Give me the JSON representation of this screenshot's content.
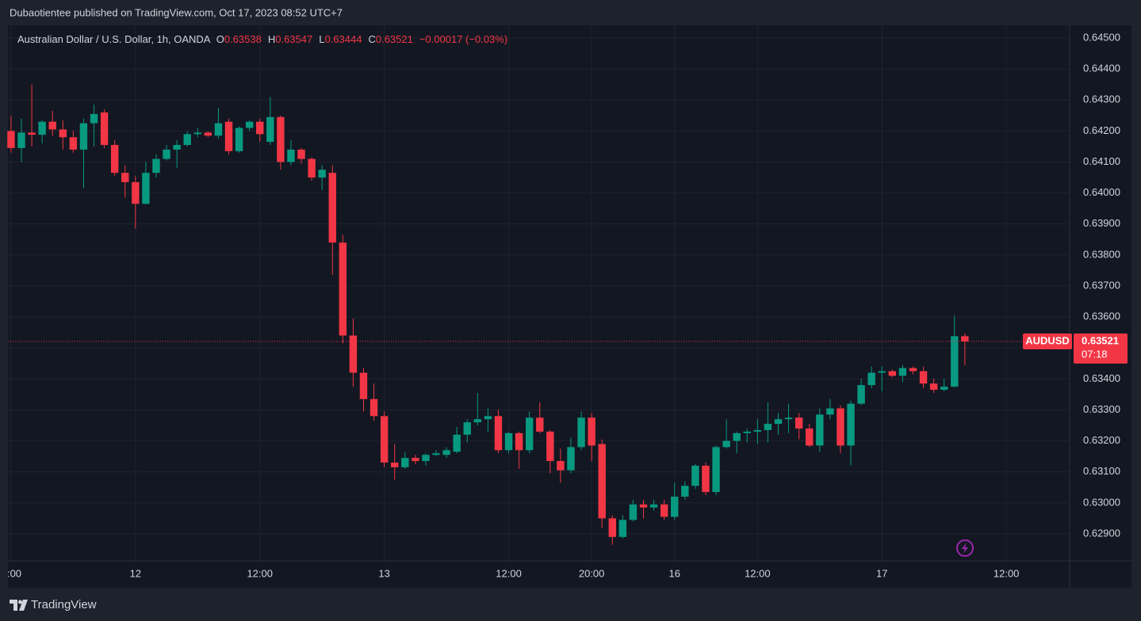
{
  "page": {
    "published": "Dubaotientee published on TradingView.com, Oct 17, 2023 08:52 UTC+7",
    "brand": "TradingView"
  },
  "chart_data": {
    "type": "candlestick",
    "title": "Australian Dollar / U.S. Dollar, 1h, OANDA",
    "ohlc_labels": [
      "O",
      "H",
      "L",
      "C"
    ],
    "change": "−0.00017 (−0.03%)",
    "symbol": "AUDUSD",
    "countdown": "07:18",
    "up_color": "#089981",
    "down_color": "#f23645",
    "grid": true,
    "xlim": [
      -0.3,
      101.8
    ],
    "xticks": [
      {
        "value": 0,
        "label": ":00"
      },
      {
        "value": 12,
        "label": "12"
      },
      {
        "value": 24,
        "label": "12:00"
      },
      {
        "value": 36,
        "label": "13"
      },
      {
        "value": 48,
        "label": "12:00"
      },
      {
        "value": 56,
        "label": "20:00"
      },
      {
        "value": 64,
        "label": "16"
      },
      {
        "value": 72,
        "label": "12:00"
      },
      {
        "value": 84,
        "label": "17"
      },
      {
        "value": 96,
        "label": "12:00"
      }
    ],
    "ylim": [
      0.62813,
      0.64541
    ],
    "yticks": [
      {
        "value": 0.645,
        "label": "0.64500"
      },
      {
        "value": 0.644,
        "label": "0.64400"
      },
      {
        "value": 0.643,
        "label": "0.64300"
      },
      {
        "value": 0.642,
        "label": "0.64200"
      },
      {
        "value": 0.641,
        "label": "0.64100"
      },
      {
        "value": 0.64,
        "label": "0.64000"
      },
      {
        "value": 0.639,
        "label": "0.63900"
      },
      {
        "value": 0.638,
        "label": "0.63800"
      },
      {
        "value": 0.637,
        "label": "0.63700"
      },
      {
        "value": 0.636,
        "label": "0.63600"
      },
      {
        "value": 0.635,
        "label": "0.63500"
      },
      {
        "value": 0.634,
        "label": "0.63400"
      },
      {
        "value": 0.633,
        "label": "0.63300"
      },
      {
        "value": 0.632,
        "label": "0.63200"
      },
      {
        "value": 0.631,
        "label": "0.63100"
      },
      {
        "value": 0.63,
        "label": "0.63000"
      },
      {
        "value": 0.629,
        "label": "0.62900"
      }
    ],
    "open": [
      0.642,
      0.64145,
      0.64195,
      0.64188,
      0.6423,
      0.64205,
      0.6418,
      0.6414,
      0.64225,
      0.6426,
      0.64155,
      0.64065,
      0.64035,
      0.63965,
      0.64065,
      0.6411,
      0.6414,
      0.64155,
      0.6419,
      0.64195,
      0.64185,
      0.6423,
      0.64135,
      0.6421,
      0.6423,
      0.64165,
      0.64245,
      0.641,
      0.6414,
      0.6411,
      0.6405,
      0.64065,
      0.6384,
      0.6354,
      0.6342,
      0.63335,
      0.6328,
      0.6313,
      0.63115,
      0.63145,
      0.63135,
      0.63155,
      0.63155,
      0.63165,
      0.6322,
      0.6326,
      0.6327,
      0.6328,
      0.6317,
      0.63225,
      0.6317,
      0.63275,
      0.6323,
      0.63135,
      0.63105,
      0.6318,
      0.63275,
      0.6319,
      0.6295,
      0.6289,
      0.62945,
      0.62995,
      0.62985,
      0.62995,
      0.62955,
      0.6302,
      0.63055,
      0.6312,
      0.63035,
      0.6318,
      0.632,
      0.63225,
      0.6323,
      0.63235,
      0.63255,
      0.6327,
      0.63275,
      0.6324,
      0.63185,
      0.63285,
      0.63305,
      0.63185,
      0.6332,
      0.6338,
      0.6342,
      0.63425,
      0.6341,
      0.63435,
      0.63425,
      0.63385,
      0.63365,
      0.63375,
      0.63538
    ],
    "high": [
      0.6425,
      0.6424,
      0.6435,
      0.64235,
      0.64265,
      0.64235,
      0.642,
      0.6424,
      0.64285,
      0.6427,
      0.6417,
      0.6409,
      0.64055,
      0.641,
      0.64125,
      0.64155,
      0.6417,
      0.642,
      0.6421,
      0.642,
      0.64275,
      0.6424,
      0.64215,
      0.64235,
      0.6424,
      0.6431,
      0.6425,
      0.6417,
      0.64145,
      0.64115,
      0.6409,
      0.6409,
      0.63865,
      0.63595,
      0.63435,
      0.63385,
      0.63295,
      0.6319,
      0.63165,
      0.63155,
      0.6316,
      0.6317,
      0.6318,
      0.63245,
      0.6327,
      0.63355,
      0.63305,
      0.633,
      0.6323,
      0.6323,
      0.63295,
      0.63325,
      0.63235,
      0.63175,
      0.6321,
      0.63295,
      0.6329,
      0.63205,
      0.6296,
      0.6296,
      0.6301,
      0.6301,
      0.6301,
      0.6301,
      0.63065,
      0.6307,
      0.63125,
      0.6313,
      0.63185,
      0.6327,
      0.6323,
      0.6324,
      0.6327,
      0.63325,
      0.6329,
      0.6332,
      0.6329,
      0.63255,
      0.63305,
      0.63335,
      0.63315,
      0.6333,
      0.634,
      0.6344,
      0.6344,
      0.6343,
      0.63445,
      0.6344,
      0.6344,
      0.634,
      0.634,
      0.63605,
      0.63547
    ],
    "low": [
      0.6413,
      0.641,
      0.6415,
      0.6416,
      0.64185,
      0.6414,
      0.6413,
      0.64015,
      0.6415,
      0.64145,
      0.64055,
      0.63985,
      0.63885,
      0.63963,
      0.6405,
      0.64105,
      0.6408,
      0.6415,
      0.6418,
      0.6418,
      0.64175,
      0.64125,
      0.6413,
      0.642,
      0.64165,
      0.64155,
      0.64075,
      0.6409,
      0.64095,
      0.6404,
      0.6401,
      0.63735,
      0.63515,
      0.63375,
      0.63295,
      0.63265,
      0.63115,
      0.63075,
      0.6311,
      0.63125,
      0.6312,
      0.6315,
      0.63145,
      0.6316,
      0.63195,
      0.6325,
      0.6323,
      0.6316,
      0.6316,
      0.6311,
      0.6316,
      0.63225,
      0.63095,
      0.63065,
      0.63095,
      0.6317,
      0.63135,
      0.6292,
      0.62865,
      0.62885,
      0.6294,
      0.6295,
      0.62975,
      0.62945,
      0.62945,
      0.6301,
      0.63045,
      0.63025,
      0.63025,
      0.63175,
      0.6316,
      0.63195,
      0.6319,
      0.63195,
      0.6322,
      0.63225,
      0.63205,
      0.6318,
      0.63165,
      0.6327,
      0.6316,
      0.6312,
      0.63315,
      0.6337,
      0.6336,
      0.63405,
      0.6339,
      0.63415,
      0.6337,
      0.63355,
      0.6336,
      0.63373,
      0.63444
    ],
    "close": [
      0.64145,
      0.64195,
      0.64188,
      0.6423,
      0.64205,
      0.6418,
      0.6414,
      0.64225,
      0.64255,
      0.64155,
      0.64065,
      0.64035,
      0.63965,
      0.64065,
      0.6411,
      0.6414,
      0.64155,
      0.6419,
      0.64195,
      0.64185,
      0.64225,
      0.64135,
      0.6421,
      0.6423,
      0.6419,
      0.64245,
      0.641,
      0.6414,
      0.6411,
      0.6405,
      0.64075,
      0.6384,
      0.6354,
      0.6342,
      0.63335,
      0.6328,
      0.6313,
      0.63115,
      0.63145,
      0.63135,
      0.63155,
      0.6316,
      0.6317,
      0.6322,
      0.6326,
      0.6327,
      0.6328,
      0.6317,
      0.63225,
      0.6317,
      0.63275,
      0.6323,
      0.63135,
      0.63105,
      0.6318,
      0.63275,
      0.63185,
      0.6295,
      0.6289,
      0.62945,
      0.62995,
      0.62985,
      0.62995,
      0.62955,
      0.6302,
      0.63055,
      0.6312,
      0.63035,
      0.6318,
      0.632,
      0.63225,
      0.6323,
      0.63235,
      0.63255,
      0.6327,
      0.63275,
      0.6324,
      0.63185,
      0.63285,
      0.63305,
      0.63185,
      0.6332,
      0.6338,
      0.6342,
      0.63425,
      0.6341,
      0.63435,
      0.63425,
      0.63385,
      0.63365,
      0.63375,
      0.63538,
      0.63521
    ]
  }
}
